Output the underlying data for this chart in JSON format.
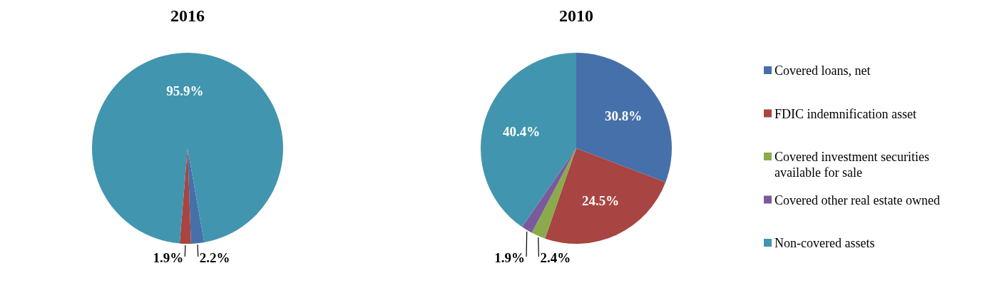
{
  "chart_data": [
    {
      "type": "pie",
      "title": "2016",
      "categories": [
        null,
        null,
        null
      ],
      "values": [
        2.2,
        1.9,
        95.9
      ],
      "colors": [
        "#4670a9",
        "#a84442",
        "#4295ae"
      ],
      "value_labels": [
        "2.2%",
        "1.9%",
        "95.9%"
      ]
    },
    {
      "type": "pie",
      "title": "2010",
      "categories": [
        "Covered loans, net",
        "FDIC indemnification asset",
        "Covered investment securities available for sale",
        "Covered other real estate owned",
        "Non-covered assets"
      ],
      "values": [
        30.8,
        24.5,
        2.4,
        1.9,
        40.4
      ],
      "colors": [
        "#4670a9",
        "#a84442",
        "#8aaa4c",
        "#7b5a9c",
        "#4295ae"
      ],
      "value_labels": [
        "30.8%",
        "24.5%",
        "2.4%",
        "1.9%",
        "40.4%"
      ],
      "legend": "right"
    }
  ]
}
